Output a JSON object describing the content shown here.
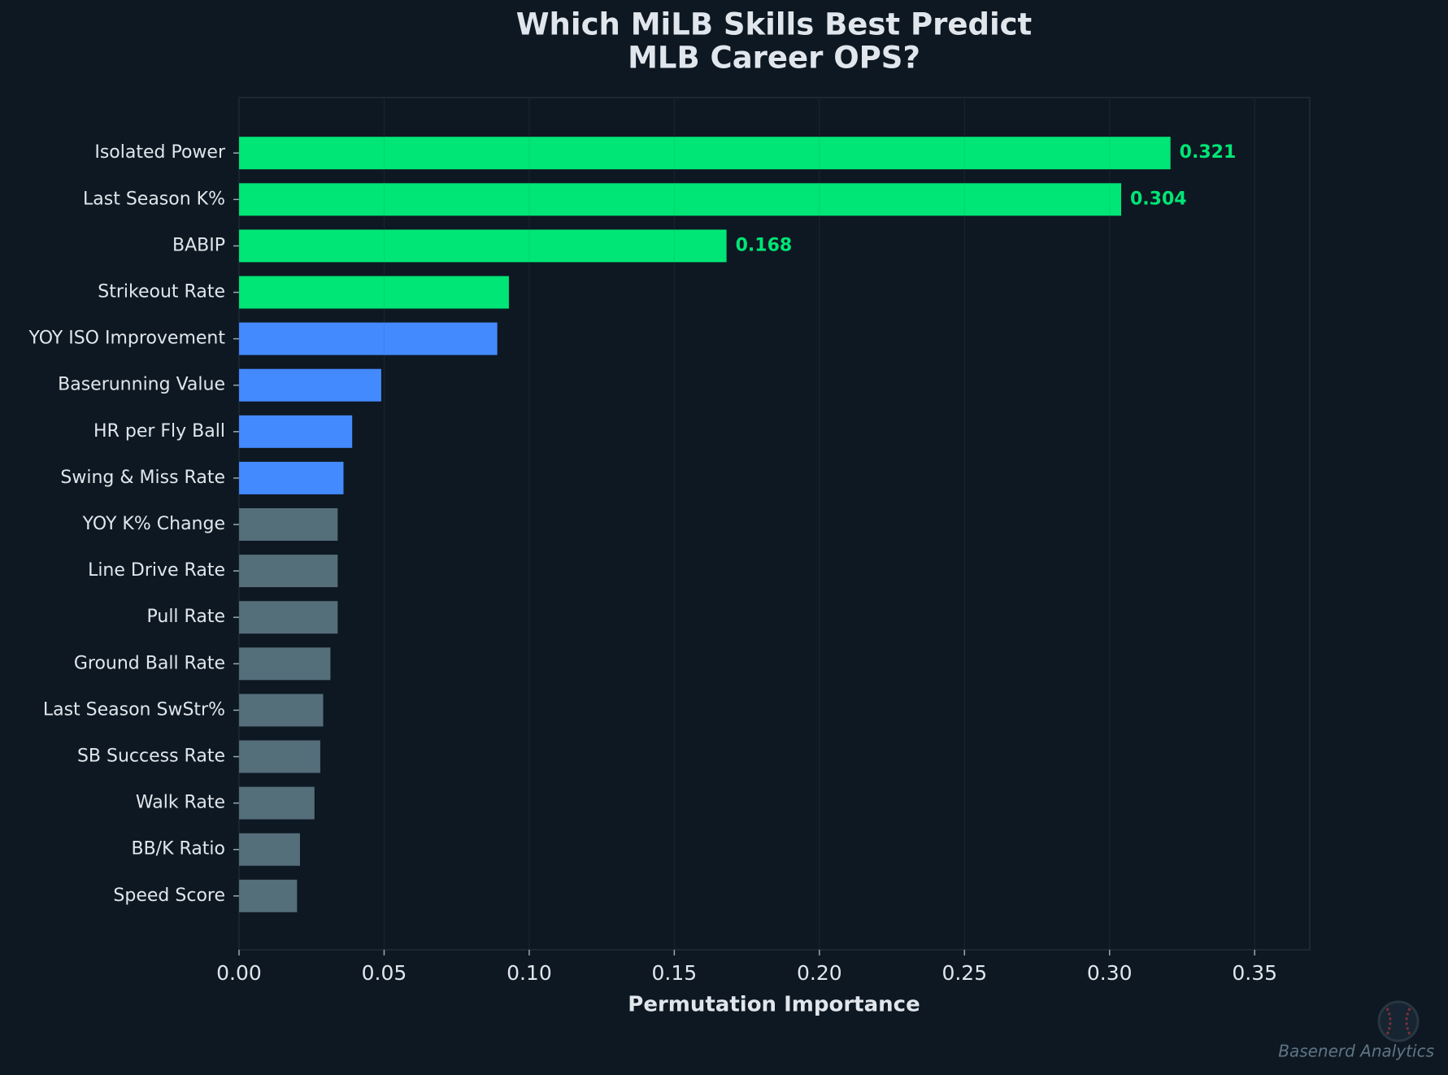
{
  "chart_data": {
    "type": "barh",
    "title": [
      "Which MiLB Skills Best Predict",
      "MLB Career OPS?"
    ],
    "x_label": "Permutation Importance",
    "categories": [
      "Isolated Power",
      "Last Season K%",
      "BABIP",
      "Strikeout Rate",
      "YOY ISO Improvement",
      "Baserunning Value",
      "HR per Fly Ball",
      "Swing & Miss Rate",
      "YOY K% Change",
      "Line Drive Rate",
      "Pull Rate",
      "Ground Ball Rate",
      "Last Season SwStr%",
      "SB Success Rate",
      "Walk Rate",
      "BB/K Ratio",
      "Speed Score"
    ],
    "values": [
      0.321,
      0.304,
      0.168,
      0.093,
      0.089,
      0.049,
      0.039,
      0.036,
      0.034,
      0.034,
      0.034,
      0.0315,
      0.029,
      0.028,
      0.026,
      0.021,
      0.02
    ],
    "value_labels": [
      "0.321",
      "0.304",
      "0.168",
      null,
      null,
      null,
      null,
      null,
      null,
      null,
      null,
      null,
      null,
      null,
      null,
      null,
      null
    ],
    "colors": [
      "#00e676",
      "#00e676",
      "#00e676",
      "#00e676",
      "#448aff",
      "#448aff",
      "#448aff",
      "#448aff",
      "#546e7a",
      "#546e7a",
      "#546e7a",
      "#546e7a",
      "#546e7a",
      "#546e7a",
      "#546e7a",
      "#546e7a",
      "#546e7a"
    ],
    "xlim": [
      0,
      0.369
    ],
    "xticks": [
      {
        "value": 0,
        "label": "0.00"
      },
      0.05,
      {
        "value": 0.1,
        "label": "0.10"
      },
      0.15,
      {
        "value": 0.2,
        "label": "0.20"
      },
      0.25,
      {
        "value": 0.3,
        "label": "0.30"
      },
      0.35
    ],
    "grid": true,
    "watermark": "Basenerd Analytics"
  }
}
